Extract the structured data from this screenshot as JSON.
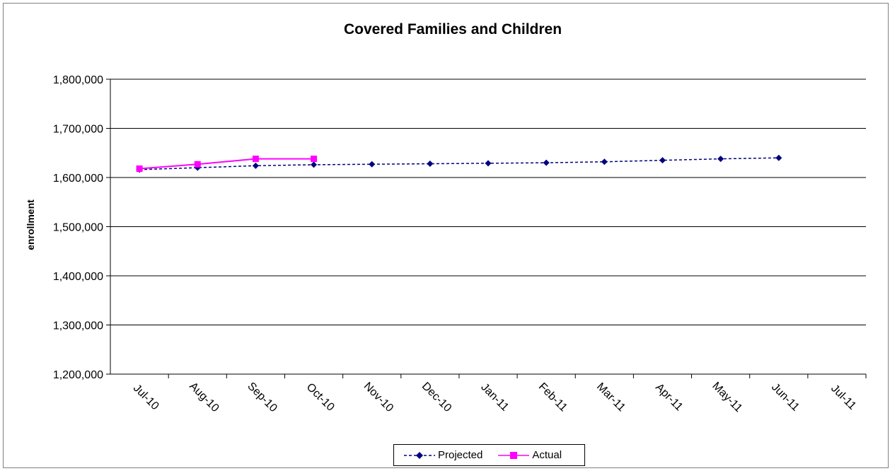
{
  "chart_data": {
    "type": "line",
    "title": "Covered Families and Children",
    "xlabel": "",
    "ylabel": "enrollment",
    "categories": [
      "Jul-10",
      "Aug-10",
      "Sep-10",
      "Oct-10",
      "Nov-10",
      "Dec-10",
      "Jan-11",
      "Feb-11",
      "Mar-11",
      "Apr-11",
      "May-11",
      "Jun-11",
      "Jul-11"
    ],
    "ylim": [
      1200000,
      1800000
    ],
    "yticks": [
      1200000,
      1300000,
      1400000,
      1500000,
      1600000,
      1700000,
      1800000
    ],
    "ytick_labels": [
      "1,200,000",
      "1,300,000",
      "1,400,000",
      "1,500,000",
      "1,600,000",
      "1,700,000",
      "1,800,000"
    ],
    "grid": true,
    "legend_position": "bottom",
    "series": [
      {
        "name": "Projected",
        "color": "#000080",
        "line_style": "dashed",
        "marker": "diamond",
        "values": [
          1616000,
          1620000,
          1624000,
          1626000,
          1627000,
          1628000,
          1629000,
          1630000,
          1632000,
          1635000,
          1638000,
          1640000,
          null
        ]
      },
      {
        "name": "Actual",
        "color": "#ff00ff",
        "line_style": "solid",
        "marker": "square",
        "values": [
          1618000,
          1627000,
          1638000,
          1638000,
          null,
          null,
          null,
          null,
          null,
          null,
          null,
          null,
          null
        ]
      }
    ]
  }
}
